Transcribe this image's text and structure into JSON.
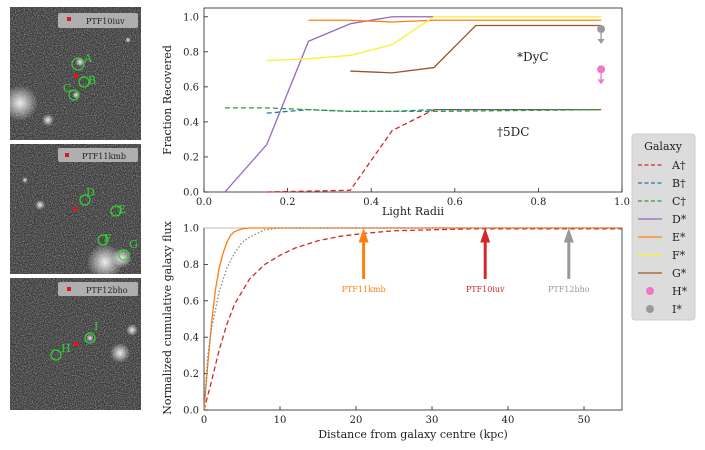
{
  "images": [
    {
      "name": "PTF10iuv",
      "galaxies": [
        {
          "id": "A"
        },
        {
          "id": "B"
        },
        {
          "id": "C"
        }
      ]
    },
    {
      "name": "PTF11kmb",
      "galaxies": [
        {
          "id": "D"
        },
        {
          "id": "E"
        },
        {
          "id": "F"
        },
        {
          "id": "G"
        },
        {
          "id": "H"
        }
      ]
    },
    {
      "name": "PTF12bho",
      "galaxies": [
        {
          "id": "H"
        },
        {
          "id": "I"
        }
      ]
    }
  ],
  "colors": {
    "A": "#d62728",
    "B": "#1f77b4",
    "C": "#2ca02c",
    "D": "#9467bd",
    "E": "#ff7f0e",
    "F": "#ffee33",
    "G": "#a0522d",
    "H": "#ee77cc",
    "I": "#999999",
    "galaxy_marker": "#35d335",
    "sn_marker": "#ee1111"
  },
  "chart_data": [
    {
      "type": "line",
      "xlabel": "Light Radii",
      "ylabel": "Fraction Recovered",
      "xlim": [
        0.0,
        1.0
      ],
      "ylim": [
        0.0,
        1.05
      ],
      "xticks": [
        "0.0",
        "0.2",
        "0.4",
        "0.6",
        "0.8",
        "1.0"
      ],
      "yticks": [
        "0.0",
        "0.2",
        "0.4",
        "0.6",
        "0.8",
        "1.0"
      ],
      "annotations": {
        "dyc": "*DyC",
        "fivedc": "†5DC"
      },
      "series": [
        {
          "key": "A",
          "dash": true,
          "x": [
            0.15,
            0.35,
            0.45,
            0.55,
            0.95
          ],
          "y": [
            0.0,
            0.01,
            0.35,
            0.47,
            0.47
          ]
        },
        {
          "key": "B",
          "dash": true,
          "x": [
            0.15,
            0.25,
            0.35,
            0.45,
            0.55,
            0.95
          ],
          "y": [
            0.45,
            0.47,
            0.46,
            0.46,
            0.47,
            0.47
          ]
        },
        {
          "key": "C",
          "dash": true,
          "x": [
            0.05,
            0.15,
            0.25,
            0.35,
            0.45,
            0.55,
            0.95
          ],
          "y": [
            0.48,
            0.48,
            0.47,
            0.46,
            0.46,
            0.46,
            0.47
          ]
        },
        {
          "key": "D",
          "dash": false,
          "x": [
            0.05,
            0.15,
            0.25,
            0.35,
            0.45,
            0.55
          ],
          "y": [
            0.0,
            0.27,
            0.86,
            0.96,
            1.0,
            1.0
          ]
        },
        {
          "key": "E",
          "dash": false,
          "x": [
            0.25,
            0.35,
            0.45,
            0.55,
            0.95
          ],
          "y": [
            0.98,
            0.98,
            0.97,
            0.98,
            0.98
          ]
        },
        {
          "key": "F",
          "dash": false,
          "x": [
            0.15,
            0.25,
            0.35,
            0.45,
            0.55,
            0.95
          ],
          "y": [
            0.75,
            0.76,
            0.78,
            0.84,
            1.0,
            1.0
          ]
        },
        {
          "key": "G",
          "dash": false,
          "x": [
            0.35,
            0.45,
            0.55,
            0.65,
            0.95
          ],
          "y": [
            0.69,
            0.68,
            0.71,
            0.95,
            0.95
          ]
        }
      ],
      "points": [
        {
          "key": "H",
          "x": 0.95,
          "y": 0.7,
          "arrow": "down"
        },
        {
          "key": "I",
          "x": 0.95,
          "y": 0.93,
          "arrow": "down"
        }
      ]
    },
    {
      "type": "line",
      "xlabel": "Distance from galaxy centre (kpc)",
      "ylabel": "Normalized cumulative galaxy flux",
      "xlim": [
        0,
        55
      ],
      "ylim": [
        0.0,
        1.0
      ],
      "xticks": [
        "0",
        "10",
        "20",
        "30",
        "40",
        "50"
      ],
      "yticks": [
        "0.0",
        "0.2",
        "0.4",
        "0.6",
        "0.8",
        "1.0"
      ],
      "series": [
        {
          "key": "A",
          "style": "dashed",
          "x": [
            0,
            1,
            2,
            3,
            4,
            6,
            8,
            10,
            12,
            15,
            18,
            21,
            25,
            30,
            35,
            40,
            45,
            55
          ],
          "y": [
            0,
            0.16,
            0.33,
            0.47,
            0.58,
            0.72,
            0.8,
            0.85,
            0.89,
            0.93,
            0.955,
            0.97,
            0.985,
            0.99,
            0.995,
            0.995,
            0.995,
            0.995
          ]
        },
        {
          "key": "E",
          "style": "solid",
          "x": [
            0,
            0.5,
            1,
            1.5,
            2,
            2.5,
            3,
            3.5,
            4,
            5,
            6,
            55
          ],
          "y": [
            0,
            0.25,
            0.48,
            0.66,
            0.78,
            0.86,
            0.92,
            0.96,
            0.98,
            0.995,
            1,
            1
          ]
        },
        {
          "key": "I",
          "style": "dotted",
          "x": [
            0,
            0.5,
            1,
            2,
            3,
            4,
            5,
            6,
            7,
            8,
            10,
            55
          ],
          "y": [
            0,
            0.3,
            0.45,
            0.65,
            0.78,
            0.86,
            0.92,
            0.95,
            0.97,
            0.99,
            1,
            1
          ]
        }
      ],
      "arrows": [
        {
          "label": "PTF11kmb",
          "x": 21,
          "key": "E"
        },
        {
          "label": "PTF10iuv",
          "x": 37,
          "key": "A"
        },
        {
          "label": "PTF12bho",
          "x": 48,
          "key": "I"
        }
      ]
    }
  ],
  "legend": {
    "title": "Galaxy",
    "entries": [
      {
        "key": "A",
        "label": "A†",
        "style": "dashed"
      },
      {
        "key": "B",
        "label": "B†",
        "style": "dashed"
      },
      {
        "key": "C",
        "label": "C†",
        "style": "dashed"
      },
      {
        "key": "D",
        "label": "D*",
        "style": "solid"
      },
      {
        "key": "E",
        "label": "E*",
        "style": "solid"
      },
      {
        "key": "F",
        "label": "F*",
        "style": "solid"
      },
      {
        "key": "G",
        "label": "G*",
        "style": "solid"
      },
      {
        "key": "H",
        "label": "H*",
        "style": "dot"
      },
      {
        "key": "I",
        "label": "I*",
        "style": "dot"
      }
    ]
  }
}
